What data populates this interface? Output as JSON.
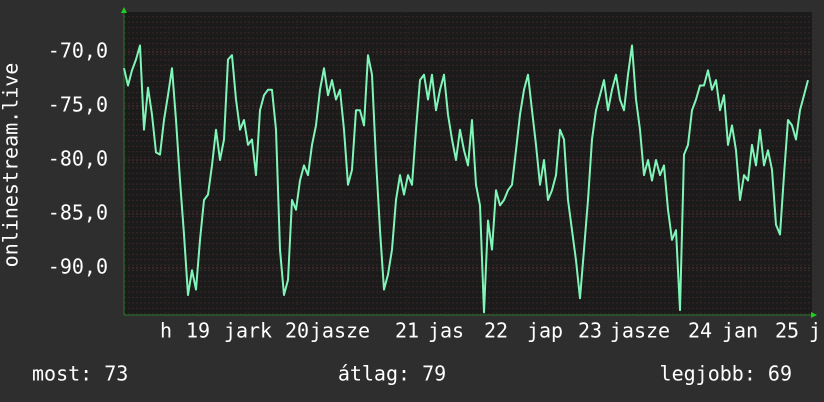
{
  "chart_data": {
    "type": "line",
    "y_label": "onlinestream.live",
    "xlim": [
      0,
      172
    ],
    "xticks": [
      {
        "value": 10.5,
        "label": "h"
      },
      {
        "value": 18.5,
        "label": "19"
      },
      {
        "value": 31,
        "label": "jark"
      },
      {
        "value": 43.25,
        "label": "20"
      },
      {
        "value": 54,
        "label": "jasze"
      },
      {
        "value": 70.75,
        "label": "21"
      },
      {
        "value": 80.5,
        "label": "jas"
      },
      {
        "value": 93,
        "label": "22"
      },
      {
        "value": 105.25,
        "label": "jap"
      },
      {
        "value": 116.5,
        "label": "23"
      },
      {
        "value": 129,
        "label": "jasze"
      },
      {
        "value": 144,
        "label": "24"
      },
      {
        "value": 154,
        "label": "jan"
      },
      {
        "value": 165.75,
        "label": "25"
      },
      {
        "value": 172.75,
        "label": "j"
      }
    ],
    "ylim": [
      -94.35,
      -66.3
    ],
    "yticks": [
      {
        "value": -70,
        "label": "-70,0"
      },
      {
        "value": -75,
        "label": "-75,0"
      },
      {
        "value": -80,
        "label": "-80,0"
      },
      {
        "value": -85,
        "label": "-85,0"
      },
      {
        "value": -90,
        "label": "-90,0"
      }
    ],
    "color": "#80f5b8",
    "values": [
      -71.5,
      -73.1,
      -71.7,
      -70.7,
      -69.4,
      -77.2,
      -73.3,
      -75.8,
      -79.3,
      -79.5,
      -76.3,
      -74.0,
      -71.5,
      -76.3,
      -81.9,
      -86.9,
      -92.5,
      -90.2,
      -92.0,
      -87.4,
      -83.7,
      -83.2,
      -80.5,
      -77.2,
      -80.0,
      -78.1,
      -70.7,
      -70.3,
      -74.4,
      -77.2,
      -76.3,
      -78.6,
      -78.1,
      -81.4,
      -75.4,
      -74.0,
      -73.5,
      -73.5,
      -77.2,
      -88.3,
      -92.5,
      -91.1,
      -83.7,
      -84.6,
      -81.9,
      -80.5,
      -81.4,
      -78.6,
      -76.8,
      -73.5,
      -71.5,
      -74.0,
      -72.6,
      -74.4,
      -73.5,
      -77.2,
      -82.3,
      -80.9,
      -75.4,
      -75.4,
      -76.8,
      -70.3,
      -72.1,
      -80.0,
      -86.5,
      -92.0,
      -90.6,
      -88.3,
      -83.7,
      -81.4,
      -83.2,
      -81.4,
      -82.3,
      -77.2,
      -72.6,
      -72.1,
      -74.4,
      -72.1,
      -75.4,
      -73.5,
      -72.1,
      -75.8,
      -78.1,
      -80.0,
      -77.2,
      -79.1,
      -80.5,
      -76.3,
      -82.3,
      -84.2,
      -94.1,
      -85.6,
      -88.3,
      -82.8,
      -84.2,
      -83.7,
      -82.8,
      -82.3,
      -79.1,
      -75.8,
      -73.5,
      -72.1,
      -75.4,
      -78.6,
      -82.3,
      -80.0,
      -83.7,
      -82.8,
      -81.4,
      -77.2,
      -78.1,
      -83.7,
      -86.5,
      -89.3,
      -92.8,
      -88.3,
      -83.7,
      -78.1,
      -75.4,
      -74.0,
      -72.6,
      -75.4,
      -73.5,
      -72.1,
      -74.4,
      -75.4,
      -72.1,
      -69.4,
      -74.4,
      -77.2,
      -81.4,
      -80.0,
      -81.9,
      -80.0,
      -81.4,
      -80.5,
      -84.6,
      -87.4,
      -86.5,
      -93.9,
      -79.5,
      -78.6,
      -75.4,
      -74.4,
      -73.1,
      -73.1,
      -71.7,
      -73.5,
      -72.6,
      -75.4,
      -74.0,
      -78.6,
      -76.8,
      -79.1,
      -83.7,
      -81.4,
      -81.9,
      -78.6,
      -80.5,
      -77.2,
      -80.5,
      -79.1,
      -80.9,
      -86.0,
      -86.9,
      -81.4,
      -76.3,
      -76.8,
      -78.1,
      -75.4,
      -74.0,
      -72.6
    ],
    "footer": [
      "most: 73",
      "átlag: 79",
      "legjobb: 69"
    ]
  }
}
